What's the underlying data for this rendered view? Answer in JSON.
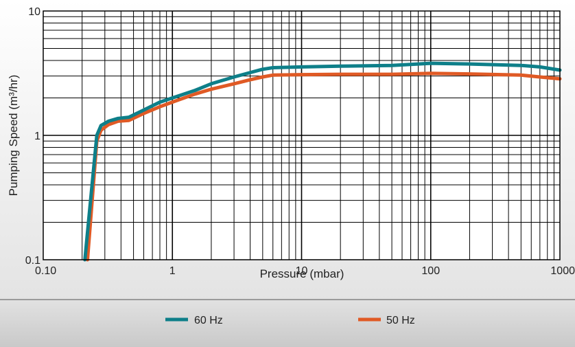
{
  "chart_data": {
    "type": "line",
    "xlabel": "Pressure (mbar)",
    "ylabel": "Pumping Speed (m³/hr)",
    "x_scale": "log",
    "y_scale": "log",
    "xlim": [
      0.1,
      1000
    ],
    "ylim": [
      0.1,
      10
    ],
    "x_ticks": [
      {
        "value": 0.1,
        "label": "0.10"
      },
      {
        "value": 1,
        "label": "1"
      },
      {
        "value": 10,
        "label": "10"
      },
      {
        "value": 100,
        "label": "100"
      },
      {
        "value": 1000,
        "label": "1000"
      }
    ],
    "y_ticks": [
      {
        "value": 0.1,
        "label": "0.1"
      },
      {
        "value": 1,
        "label": "1"
      },
      {
        "value": 10,
        "label": "10"
      }
    ],
    "grid": true,
    "legend_position": "bottom",
    "series": [
      {
        "name": "60 Hz",
        "color": "#0e7f89",
        "x": [
          0.21,
          0.26,
          0.28,
          0.32,
          0.38,
          0.46,
          0.6,
          0.8,
          1.0,
          1.5,
          2.0,
          3.0,
          4.0,
          5.0,
          6.0,
          10,
          20,
          50,
          100,
          200,
          500,
          700,
          1000
        ],
        "y": [
          0.1,
          1.0,
          1.2,
          1.3,
          1.37,
          1.4,
          1.6,
          1.85,
          2.0,
          2.3,
          2.6,
          2.95,
          3.2,
          3.4,
          3.5,
          3.55,
          3.6,
          3.65,
          3.8,
          3.75,
          3.65,
          3.55,
          3.35
        ]
      },
      {
        "name": "50 Hz",
        "color": "#e05a25",
        "x": [
          0.22,
          0.26,
          0.28,
          0.32,
          0.38,
          0.46,
          0.6,
          0.8,
          1.0,
          1.5,
          2.0,
          3.0,
          4.0,
          5.0,
          6.0,
          10,
          20,
          50,
          100,
          200,
          500,
          700,
          1000
        ],
        "y": [
          0.1,
          0.9,
          1.1,
          1.22,
          1.3,
          1.32,
          1.5,
          1.7,
          1.85,
          2.15,
          2.35,
          2.6,
          2.8,
          2.95,
          3.05,
          3.08,
          3.1,
          3.1,
          3.15,
          3.12,
          3.05,
          2.95,
          2.85
        ]
      }
    ]
  }
}
